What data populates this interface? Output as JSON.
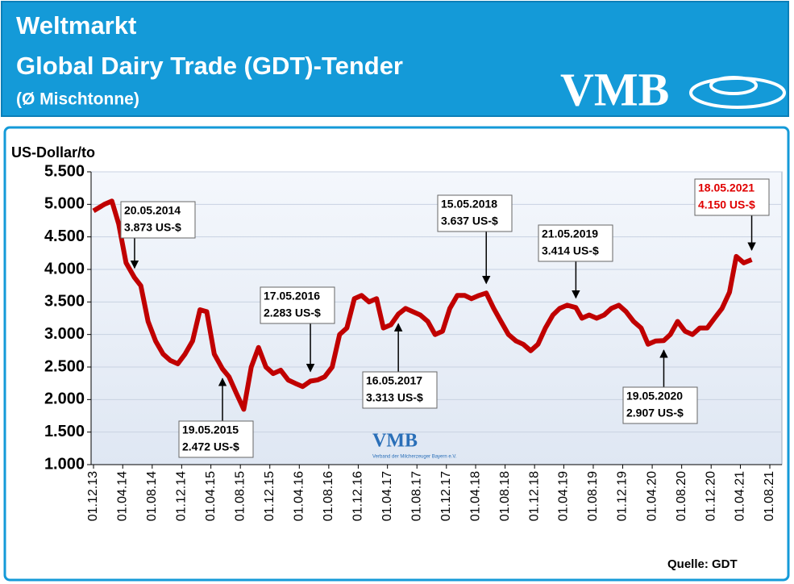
{
  "header": {
    "title": "Weltmarkt",
    "subtitle": "Global Dairy Trade (GDT)-Tender",
    "note": "(Ø Mischtonne)",
    "logo": "VMB"
  },
  "chart_data": {
    "type": "line",
    "ylabel": "US-Dollar/to",
    "source": "Quelle: GDT",
    "watermark": "VMB",
    "watermark_text": "Verband der Milcherzeuger Bayern e.V.",
    "grid": true,
    "xlim": [
      "2013-11-21",
      "2021-09-20"
    ],
    "ylim": [
      1000,
      5500
    ],
    "yticks": [
      {
        "value": 1000,
        "label": "1.000"
      },
      {
        "value": 1500,
        "label": "1.500"
      },
      {
        "value": 2000,
        "label": "2.000"
      },
      {
        "value": 2500,
        "label": "2.500"
      },
      {
        "value": 3000,
        "label": "3.000"
      },
      {
        "value": 3500,
        "label": "3.500"
      },
      {
        "value": 4000,
        "label": "4.000"
      },
      {
        "value": 4500,
        "label": "4.500"
      },
      {
        "value": 5000,
        "label": "5.000"
      },
      {
        "value": 5500,
        "label": "5.500"
      }
    ],
    "xticks": [
      {
        "value": "2013-12-01",
        "label": "01.12.13"
      },
      {
        "value": "2014-04-01",
        "label": "01.04.14"
      },
      {
        "value": "2014-08-01",
        "label": "01.08.14"
      },
      {
        "value": "2014-12-01",
        "label": "01.12.14"
      },
      {
        "value": "2015-04-01",
        "label": "01.04.15"
      },
      {
        "value": "2015-08-01",
        "label": "01.08.15"
      },
      {
        "value": "2015-12-01",
        "label": "01.12.15"
      },
      {
        "value": "2016-04-01",
        "label": "01.04.16"
      },
      {
        "value": "2016-08-01",
        "label": "01.08.16"
      },
      {
        "value": "2016-12-01",
        "label": "01.12.16"
      },
      {
        "value": "2017-04-01",
        "label": "01.04.17"
      },
      {
        "value": "2017-08-01",
        "label": "01.08.17"
      },
      {
        "value": "2017-12-01",
        "label": "01.12.17"
      },
      {
        "value": "2018-04-01",
        "label": "01.04.18"
      },
      {
        "value": "2018-08-01",
        "label": "01.08.18"
      },
      {
        "value": "2018-12-01",
        "label": "01.12.18"
      },
      {
        "value": "2019-04-01",
        "label": "01.04.19"
      },
      {
        "value": "2019-08-01",
        "label": "01.08.19"
      },
      {
        "value": "2019-12-01",
        "label": "01.12.19"
      },
      {
        "value": "2020-04-01",
        "label": "01.04.20"
      },
      {
        "value": "2020-08-01",
        "label": "01.08.20"
      },
      {
        "value": "2020-12-01",
        "label": "01.12.20"
      },
      {
        "value": "2021-04-01",
        "label": "01.04.21"
      },
      {
        "value": "2021-08-01",
        "label": "01.08.21"
      }
    ],
    "series": [
      {
        "color": "#c00000",
        "x": [
          "2013-12-01",
          "2014-01-15",
          "2014-02-15",
          "2014-03-15",
          "2014-04-15",
          "2014-05-20",
          "2014-06-15",
          "2014-07-15",
          "2014-08-15",
          "2014-09-15",
          "2014-10-15",
          "2014-11-15",
          "2014-12-15",
          "2015-01-15",
          "2015-02-15",
          "2015-03-15",
          "2015-04-15",
          "2015-05-19",
          "2015-06-15",
          "2015-07-15",
          "2015-08-15",
          "2015-09-15",
          "2015-10-15",
          "2015-11-15",
          "2015-12-15",
          "2016-01-15",
          "2016-02-15",
          "2016-03-15",
          "2016-04-15",
          "2016-05-17",
          "2016-06-15",
          "2016-07-15",
          "2016-08-15",
          "2016-09-15",
          "2016-10-15",
          "2016-11-15",
          "2016-12-15",
          "2017-01-15",
          "2017-02-15",
          "2017-03-15",
          "2017-04-15",
          "2017-05-16",
          "2017-06-15",
          "2017-07-15",
          "2017-08-15",
          "2017-09-15",
          "2017-10-15",
          "2017-11-15",
          "2017-12-15",
          "2018-01-15",
          "2018-02-15",
          "2018-03-15",
          "2018-04-15",
          "2018-05-15",
          "2018-06-15",
          "2018-07-15",
          "2018-08-15",
          "2018-09-15",
          "2018-10-15",
          "2018-11-15",
          "2018-12-15",
          "2019-01-15",
          "2019-02-15",
          "2019-03-15",
          "2019-04-15",
          "2019-05-21",
          "2019-06-15",
          "2019-07-15",
          "2019-08-15",
          "2019-09-15",
          "2019-10-15",
          "2019-11-15",
          "2019-12-15",
          "2020-01-15",
          "2020-02-15",
          "2020-03-15",
          "2020-04-15",
          "2020-05-19",
          "2020-06-15",
          "2020-07-15",
          "2020-08-15",
          "2020-09-15",
          "2020-10-15",
          "2020-11-15",
          "2020-12-15",
          "2021-01-15",
          "2021-02-15",
          "2021-03-15",
          "2021-04-15",
          "2021-05-18"
        ],
        "values": [
          4900,
          5000,
          5050,
          4700,
          4100,
          3873,
          3750,
          3200,
          2900,
          2700,
          2600,
          2550,
          2700,
          2900,
          3380,
          3350,
          2700,
          2472,
          2350,
          2100,
          1850,
          2500,
          2800,
          2500,
          2400,
          2450,
          2300,
          2250,
          2200,
          2283,
          2300,
          2350,
          2500,
          3000,
          3100,
          3550,
          3600,
          3500,
          3550,
          3100,
          3150,
          3313,
          3400,
          3350,
          3300,
          3200,
          3000,
          3050,
          3400,
          3600,
          3600,
          3550,
          3600,
          3637,
          3400,
          3200,
          3000,
          2900,
          2850,
          2750,
          2850,
          3100,
          3300,
          3400,
          3450,
          3414,
          3250,
          3300,
          3250,
          3300,
          3400,
          3450,
          3350,
          3200,
          3100,
          2850,
          2900,
          2907,
          3000,
          3200,
          3050,
          3000,
          3100,
          3100,
          3250,
          3400,
          3650,
          4200,
          4100,
          4150
        ]
      }
    ],
    "annotations": [
      {
        "date": "20.05.2014",
        "label": "3.873 US-$",
        "x": "2014-05-20",
        "value": 3873,
        "color": "#000000"
      },
      {
        "date": "19.05.2015",
        "label": "2.472 US-$",
        "x": "2015-05-19",
        "value": 2472,
        "color": "#000000"
      },
      {
        "date": "17.05.2016",
        "label": "2.283 US-$",
        "x": "2016-05-17",
        "value": 2283,
        "color": "#000000"
      },
      {
        "date": "16.05.2017",
        "label": "3.313 US-$",
        "x": "2017-05-16",
        "value": 3313,
        "color": "#000000"
      },
      {
        "date": "15.05.2018",
        "label": "3.637 US-$",
        "x": "2018-05-15",
        "value": 3637,
        "color": "#000000"
      },
      {
        "date": "21.05.2019",
        "label": "3.414 US-$",
        "x": "2019-05-21",
        "value": 3414,
        "color": "#000000"
      },
      {
        "date": "19.05.2020",
        "label": "2.907 US-$",
        "x": "2020-05-19",
        "value": 2907,
        "color": "#000000"
      },
      {
        "date": "18.05.2021",
        "label": "4.150 US-$",
        "x": "2021-05-18",
        "value": 4150,
        "color": "#e00000"
      }
    ]
  }
}
